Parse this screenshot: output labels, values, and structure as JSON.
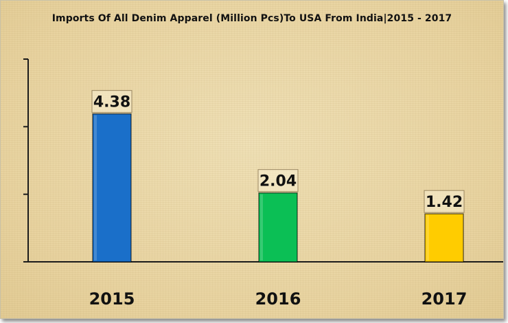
{
  "chart_data": {
    "type": "bar",
    "title": "Imports Of All Denim Apparel (Million Pcs)To USA From India|2015 - 2017",
    "categories": [
      "2015",
      "2016",
      "2017"
    ],
    "values": [
      4.38,
      2.04,
      1.42
    ],
    "value_labels": [
      "4.38",
      "2.04",
      "1.42"
    ],
    "colors": [
      "#1a6fc9",
      "#0bbf55",
      "#ffcc00"
    ],
    "xlabel": "",
    "ylabel": "",
    "ylim": [
      0,
      6
    ],
    "grid": false,
    "legend": "none"
  }
}
